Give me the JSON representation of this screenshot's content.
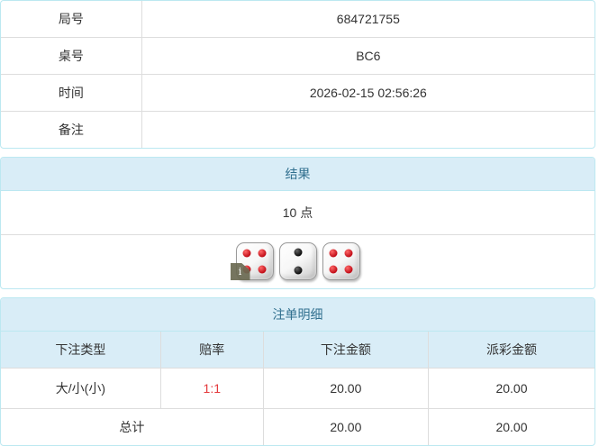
{
  "info_table": {
    "rows": [
      {
        "label": "局号",
        "value": "684721755"
      },
      {
        "label": "桌号",
        "value": "BC6"
      },
      {
        "label": "时间",
        "value": "2026-02-15 02:56:26"
      },
      {
        "label": "备注",
        "value": ""
      }
    ]
  },
  "result_panel": {
    "title": "结果",
    "points": "10 点",
    "dice": [
      {
        "value": 4,
        "color": "red"
      },
      {
        "value": 2,
        "color": "black"
      },
      {
        "value": 4,
        "color": "red"
      }
    ],
    "info_badge": "i"
  },
  "bets_panel": {
    "title": "注单明细",
    "columns": [
      "下注类型",
      "赔率",
      "下注金额",
      "派彩金额"
    ],
    "rows": [
      {
        "type": "大/小(小)",
        "odds": "1:1",
        "bet": "20.00",
        "payout": "20.00"
      }
    ],
    "total": {
      "label": "总计",
      "bet": "20.00",
      "payout": "20.00"
    }
  },
  "colors": {
    "panel_border": "#bce8f1",
    "heading_bg": "#d9edf7",
    "heading_text": "#31708f",
    "table_border": "#dddddd",
    "odds_red": "#e4393c",
    "text": "#333333"
  }
}
